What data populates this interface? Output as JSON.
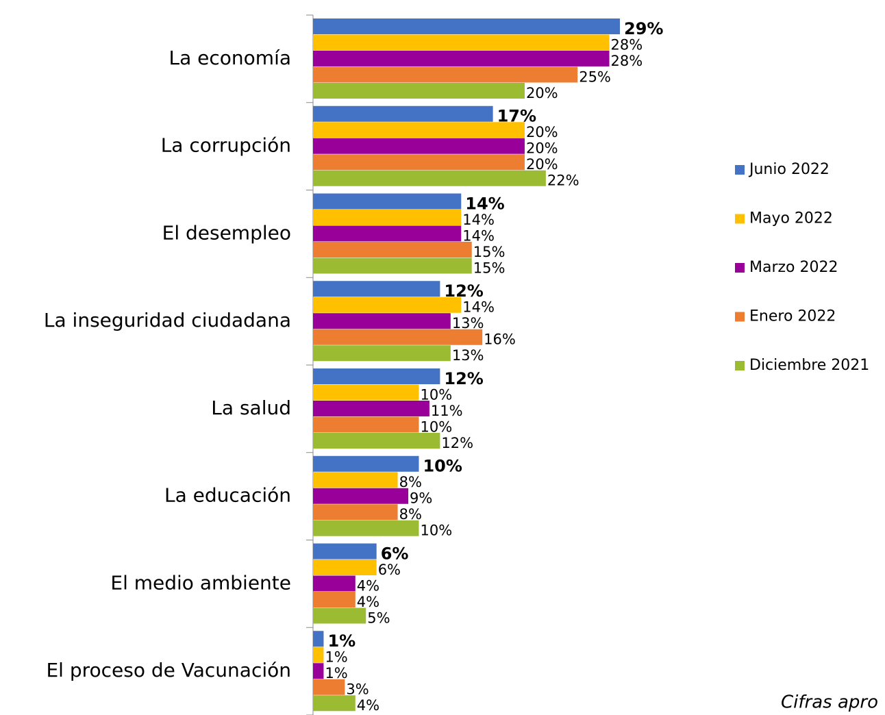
{
  "chart_data": {
    "type": "bar",
    "orientation": "horizontal",
    "categories": [
      "La economía",
      "La corrupción",
      "El desempleo",
      "La inseguridad ciudadana",
      "La salud",
      "La educación",
      "El medio ambiente",
      "El proceso de Vacunación"
    ],
    "series": [
      {
        "name": "Junio 2022",
        "color": "#4472c4",
        "values": [
          29,
          17,
          14,
          12,
          12,
          10,
          6,
          1
        ],
        "value_labels": [
          "29%",
          "17%",
          "14%",
          "12%",
          "12%",
          "10%",
          "6%",
          "1%"
        ]
      },
      {
        "name": "Mayo 2022",
        "color": "#ffc000",
        "values": [
          28,
          20,
          14,
          14,
          10,
          8,
          6,
          1
        ],
        "value_labels": [
          "28%",
          "20%",
          "14%",
          "14%",
          "10%",
          "8%",
          "6%",
          "1%"
        ]
      },
      {
        "name": "Marzo 2022",
        "color": "#990099",
        "values": [
          28,
          20,
          14,
          13,
          11,
          9,
          4,
          1
        ],
        "value_labels": [
          "28%",
          "20%",
          "14%",
          "13%",
          "11%",
          "9%",
          "4%",
          "1%"
        ]
      },
      {
        "name": "Enero 2022",
        "color": "#ed7d31",
        "values": [
          25,
          20,
          15,
          16,
          10,
          8,
          4,
          3
        ],
        "value_labels": [
          "25%",
          "20%",
          "15%",
          "16%",
          "10%",
          "8%",
          "4%",
          "3%"
        ]
      },
      {
        "name": "Diciembre 2021",
        "color": "#9bbb33",
        "values": [
          20,
          22,
          15,
          13,
          12,
          10,
          5,
          4
        ],
        "value_labels": [
          "20%",
          "22%",
          "15%",
          "13%",
          "12%",
          "10%",
          "5%",
          "4%"
        ]
      }
    ],
    "legend": "right",
    "note": "Cifras apro"
  }
}
